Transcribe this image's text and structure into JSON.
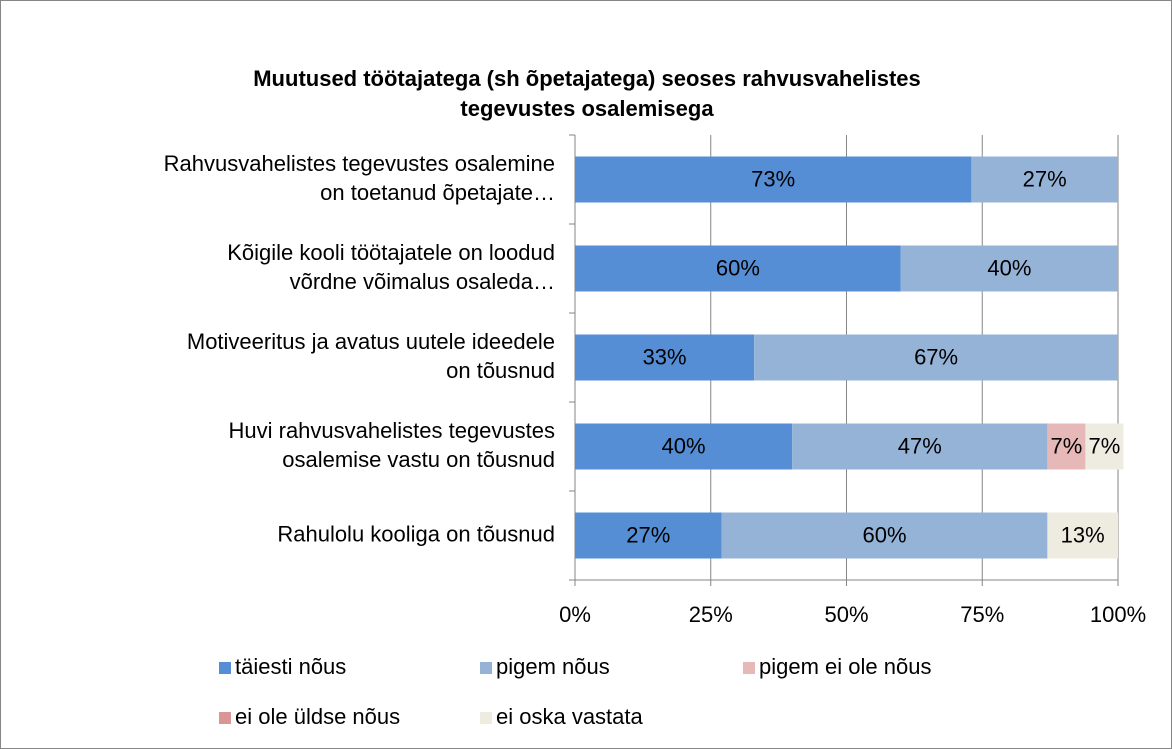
{
  "chart_data": {
    "type": "stacked_barh",
    "title": [
      "Muutused töötajatega (sh õpetajatega) seoses rahvusvahelistes",
      "tegevustes osalemisega"
    ],
    "categories": [
      [
        "Rahvusvahelistes tegevustes osalemine",
        "on toetanud õpetajate…"
      ],
      [
        "Kõigile kooli töötajatele on loodud",
        "võrdne võimalus osaleda…"
      ],
      [
        "Motiveeritus ja avatus uutele ideedele",
        "on tõusnud"
      ],
      [
        "Huvi rahvusvahelistes tegevustes",
        "osalemise vastu on tõusnud"
      ],
      [
        "Rahulolu kooliga on tõusnud"
      ]
    ],
    "series": [
      {
        "name": "täiesti nõus",
        "color": "#558ed5",
        "values": [
          73,
          60,
          33,
          40,
          27
        ],
        "value_labels": [
          "73%",
          "60%",
          "33%",
          "40%",
          "27%"
        ]
      },
      {
        "name": "pigem nõus",
        "color": "#95b3d7",
        "values": [
          27,
          40,
          67,
          47,
          60
        ],
        "value_labels": [
          "27%",
          "40%",
          "67%",
          "47%",
          "60%"
        ]
      },
      {
        "name": "pigem ei ole nõus",
        "color": "#e6b9b8",
        "values": [
          null,
          null,
          null,
          7,
          null
        ],
        "value_labels": [
          null,
          null,
          null,
          "7%",
          null
        ]
      },
      {
        "name": "ei ole üldse nõus",
        "color": "#d99694",
        "values": [
          null,
          null,
          null,
          null,
          null
        ],
        "value_labels": [
          null,
          null,
          null,
          null,
          null
        ]
      },
      {
        "name": "ei oska vastata",
        "color": "#eeece1",
        "values": [
          null,
          null,
          null,
          7,
          13
        ],
        "value_labels": [
          null,
          null,
          null,
          "7%",
          "13%"
        ]
      }
    ],
    "xlim": [
      0,
      100
    ],
    "xticks": [
      {
        "value": 0,
        "label": "0%"
      },
      {
        "value": 25,
        "label": "25%"
      },
      {
        "value": 50,
        "label": "50%"
      },
      {
        "value": 75,
        "label": "75%"
      },
      {
        "value": 100,
        "label": "100%"
      }
    ],
    "grid": true,
    "legend": "bottom"
  }
}
